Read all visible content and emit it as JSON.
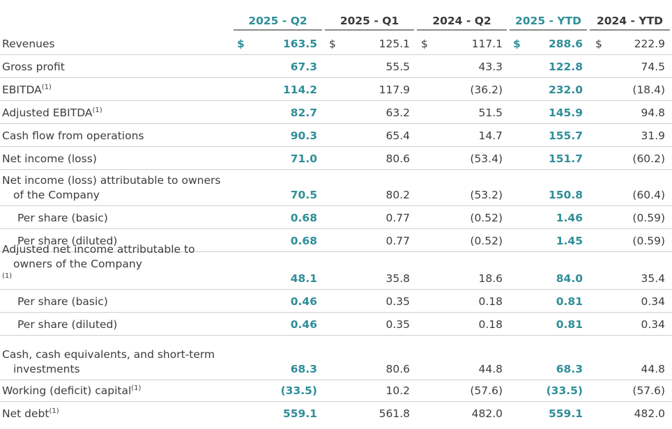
{
  "columns": [
    {
      "label": "2025 - Q2",
      "highlight": true
    },
    {
      "label": "2025 - Q1",
      "highlight": false
    },
    {
      "label": "2024 - Q2",
      "highlight": false
    },
    {
      "label": "2025 - YTD",
      "highlight": true
    },
    {
      "label": "2024 - YTD",
      "highlight": false
    }
  ],
  "currency_symbol": "$",
  "rows": [
    {
      "label": [
        "Revenues"
      ],
      "sup": "",
      "indent": false,
      "currency": true,
      "values": [
        "163.5",
        "125.1",
        "117.1",
        "288.6",
        "222.9"
      ]
    },
    {
      "label": [
        "Gross profit"
      ],
      "sup": "",
      "indent": false,
      "currency": false,
      "values": [
        "67.3",
        "55.5",
        "43.3",
        "122.8",
        "74.5"
      ]
    },
    {
      "label": [
        "EBITDA"
      ],
      "sup": "(1)",
      "indent": false,
      "currency": false,
      "values": [
        "114.2",
        "117.9",
        "(36.2)",
        "232.0",
        "(18.4)"
      ]
    },
    {
      "label": [
        "Adjusted EBITDA"
      ],
      "sup": "(1)",
      "indent": false,
      "currency": false,
      "values": [
        "82.7",
        "63.2",
        "51.5",
        "145.9",
        "94.8"
      ]
    },
    {
      "label": [
        "Cash flow from operations"
      ],
      "sup": "",
      "indent": false,
      "currency": false,
      "values": [
        "90.3",
        "65.4",
        "14.7",
        "155.7",
        "31.9"
      ]
    },
    {
      "label": [
        "Net income (loss)"
      ],
      "sup": "",
      "indent": false,
      "currency": false,
      "values": [
        "71.0",
        "80.6",
        "(53.4)",
        "151.7",
        "(60.2)"
      ]
    },
    {
      "label": [
        "Net income (loss) attributable to owners",
        "of the Company"
      ],
      "sup": "",
      "indent": false,
      "currency": false,
      "values": [
        "70.5",
        "80.2",
        "(53.2)",
        "150.8",
        "(60.4)"
      ]
    },
    {
      "label": [
        "Per share (basic)"
      ],
      "sup": "",
      "indent": true,
      "currency": false,
      "values": [
        "0.68",
        "0.77",
        "(0.52)",
        "1.46",
        "(0.59)"
      ]
    },
    {
      "label": [
        "Per share (diluted)"
      ],
      "sup": "",
      "indent": true,
      "currency": false,
      "values": [
        "0.68",
        "0.77",
        "(0.52)",
        "1.45",
        "(0.59)"
      ]
    },
    {
      "label": [
        "Adjusted net income attributable to",
        "owners of the Company"
      ],
      "sup": "(1)",
      "indent": false,
      "currency": false,
      "values": [
        "48.1",
        "35.8",
        "18.6",
        "84.0",
        "35.4"
      ]
    },
    {
      "label": [
        "Per share (basic)"
      ],
      "sup": "",
      "indent": true,
      "currency": false,
      "values": [
        "0.46",
        "0.35",
        "0.18",
        "0.81",
        "0.34"
      ]
    },
    {
      "label": [
        "Per share (diluted)"
      ],
      "sup": "",
      "indent": true,
      "currency": false,
      "values": [
        "0.46",
        "0.35",
        "0.18",
        "0.81",
        "0.34"
      ]
    },
    {
      "label": [
        "Cash, cash equivalents, and short-term",
        "investments"
      ],
      "sup": "",
      "indent": false,
      "currency": false,
      "values": [
        "68.3",
        "80.6",
        "44.8",
        "68.3",
        "44.8"
      ]
    },
    {
      "label": [
        "Working (deficit) capital"
      ],
      "sup": "(1)",
      "indent": false,
      "currency": false,
      "values": [
        "(33.5)",
        "10.2",
        "(57.6)",
        "(33.5)",
        "(57.6)"
      ]
    },
    {
      "label": [
        "Net debt"
      ],
      "sup": "(1)",
      "indent": false,
      "currency": false,
      "values": [
        "559.1",
        "561.8",
        "482.0",
        "559.1",
        "482.0"
      ]
    }
  ],
  "colors": {
    "accent": "#2f8e99",
    "text": "#3c3c3c",
    "rule": "#cfcfcf"
  }
}
